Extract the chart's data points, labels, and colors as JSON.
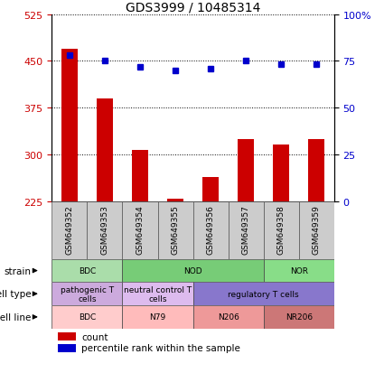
{
  "title": "GDS3999 / 10485314",
  "samples": [
    "GSM649352",
    "GSM649353",
    "GSM649354",
    "GSM649355",
    "GSM649356",
    "GSM649357",
    "GSM649358",
    "GSM649359"
  ],
  "counts": [
    470,
    390,
    307,
    228,
    263,
    325,
    315,
    325
  ],
  "percentiles": [
    78,
    75,
    72,
    70,
    71,
    75,
    73,
    73
  ],
  "ylim_left": [
    225,
    525
  ],
  "ylim_right": [
    0,
    100
  ],
  "yticks_left": [
    225,
    300,
    375,
    450,
    525
  ],
  "yticks_right": [
    0,
    25,
    50,
    75,
    100
  ],
  "bar_color": "#cc0000",
  "dot_color": "#0000cc",
  "bar_bottom": 225,
  "strain_row": {
    "label": "strain",
    "segments": [
      {
        "text": "BDC",
        "start": 0,
        "end": 2,
        "color": "#aaddaa"
      },
      {
        "text": "NOD",
        "start": 2,
        "end": 6,
        "color": "#77cc77"
      },
      {
        "text": "NOR",
        "start": 6,
        "end": 8,
        "color": "#88dd88"
      }
    ]
  },
  "celltype_row": {
    "label": "cell type",
    "segments": [
      {
        "text": "pathogenic T\ncells",
        "start": 0,
        "end": 2,
        "color": "#ccaadd"
      },
      {
        "text": "neutral control T\ncells",
        "start": 2,
        "end": 4,
        "color": "#ddbbee"
      },
      {
        "text": "regulatory T cells",
        "start": 4,
        "end": 8,
        "color": "#8877cc"
      }
    ]
  },
  "cellline_row": {
    "label": "cell line",
    "segments": [
      {
        "text": "BDC",
        "start": 0,
        "end": 2,
        "color": "#ffcccc"
      },
      {
        "text": "N79",
        "start": 2,
        "end": 4,
        "color": "#ffbbbb"
      },
      {
        "text": "N206",
        "start": 4,
        "end": 6,
        "color": "#ee9999"
      },
      {
        "text": "NR206",
        "start": 6,
        "end": 8,
        "color": "#cc7777"
      }
    ]
  },
  "legend_count_color": "#cc0000",
  "legend_pct_color": "#0000cc",
  "tick_label_color_left": "#cc0000",
  "tick_label_color_right": "#0000cc",
  "dotted_line_color": "#000000",
  "xticklabel_bg": "#cccccc",
  "right_ytick_labels": [
    "0",
    "25",
    "50",
    "75",
    "100%"
  ]
}
